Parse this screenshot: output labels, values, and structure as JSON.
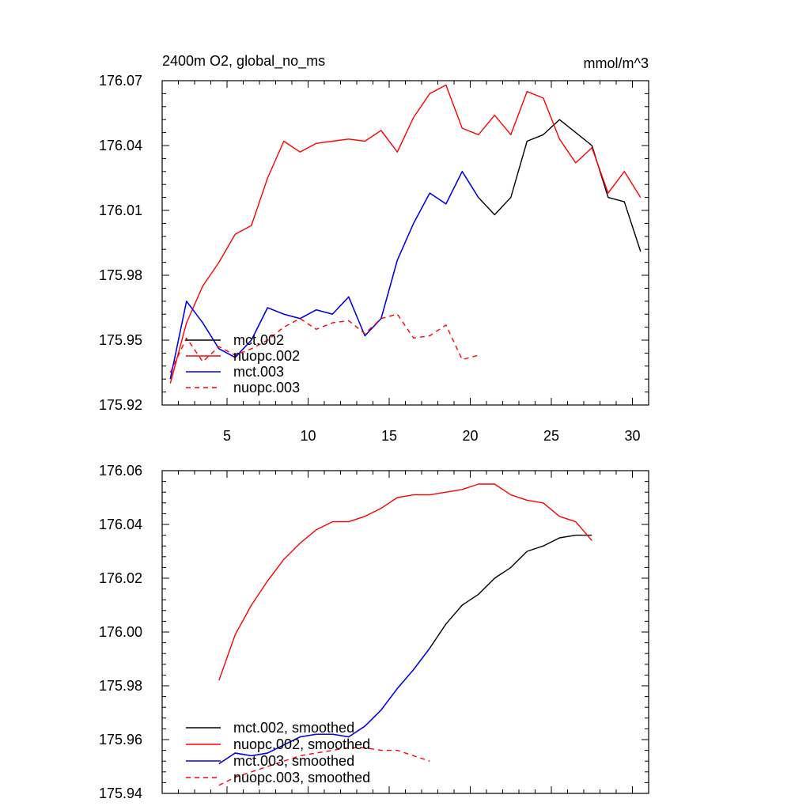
{
  "chart_data": [
    {
      "type": "line",
      "title": "2400m O2, global_no_ms",
      "units": "mmol/m^3",
      "xlim": [
        1,
        31
      ],
      "ylim": [
        175.92,
        176.07
      ],
      "xticks": [
        5,
        10,
        15,
        20,
        25,
        30
      ],
      "xtick_labels": [
        "5",
        "10",
        "15",
        "20",
        "25",
        "30"
      ],
      "yticks": [
        175.92,
        175.95,
        175.98,
        176.01,
        176.04,
        176.07
      ],
      "ytick_labels": [
        "175.92",
        "175.95",
        "175.98",
        "176.01",
        "176.04",
        "176.07"
      ],
      "legend_position": "bottom-left",
      "series": [
        {
          "name": "mct.002",
          "color": "#000000",
          "dash": "solid",
          "x": [
            1.5,
            2.5,
            3.5,
            4.5,
            5.5,
            6.5,
            7.5,
            8.5,
            9.5,
            10.5,
            11.5,
            12.5,
            13.5,
            14.5,
            15.5,
            16.5,
            17.5,
            18.5,
            19.5,
            20.5,
            21.5,
            22.5,
            23.5,
            24.5,
            25.5,
            26.5,
            27.5,
            28.5,
            29.5,
            30.5
          ],
          "values": [
            175.932,
            175.968,
            175.958,
            175.946,
            175.942,
            175.95,
            175.965,
            175.962,
            175.96,
            175.964,
            175.962,
            175.97,
            175.952,
            175.96,
            175.987,
            176.004,
            176.018,
            176.013,
            176.028,
            176.016,
            176.008,
            176.016,
            176.042,
            176.045,
            176.052,
            176.046,
            176.04,
            176.016,
            176.014,
            175.991
          ]
        },
        {
          "name": "nuopc.002",
          "color": "#ff0000",
          "dash": "solid",
          "x": [
            1.5,
            2.5,
            3.5,
            4.5,
            5.5,
            6.5,
            7.5,
            8.5,
            9.5,
            10.5,
            11.5,
            12.5,
            13.5,
            14.5,
            15.5,
            16.5,
            17.5,
            18.5,
            19.5,
            20.5,
            21.5,
            22.5,
            23.5,
            24.5,
            25.5,
            26.5,
            27.5,
            28.5,
            29.5,
            30.5
          ],
          "values": [
            175.93,
            175.958,
            175.975,
            175.986,
            175.999,
            176.003,
            176.025,
            176.042,
            176.037,
            176.041,
            176.042,
            176.043,
            176.042,
            176.047,
            176.037,
            176.053,
            176.064,
            176.068,
            176.048,
            176.045,
            176.054,
            176.045,
            176.065,
            176.062,
            176.043,
            176.032,
            176.039,
            176.018,
            176.028,
            176.016
          ]
        },
        {
          "name": "mct.003",
          "color": "#0000ff",
          "dash": "solid",
          "x": [
            1.5,
            2.5,
            3.5,
            4.5,
            5.5,
            6.5,
            7.5,
            8.5,
            9.5,
            10.5,
            11.5,
            12.5,
            13.5,
            14.5,
            15.5,
            16.5,
            17.5,
            18.5,
            19.5,
            20.5
          ],
          "values": [
            175.932,
            175.968,
            175.958,
            175.946,
            175.942,
            175.95,
            175.965,
            175.962,
            175.96,
            175.964,
            175.962,
            175.97,
            175.952,
            175.96,
            175.987,
            176.004,
            176.018,
            176.013,
            176.028,
            176.016
          ]
        },
        {
          "name": "nuopc.003",
          "color": "#ff0000",
          "dash": "dashed",
          "x": [
            1.5,
            2.5,
            3.5,
            4.5,
            5.5,
            6.5,
            7.5,
            8.5,
            9.5,
            10.5,
            11.5,
            12.5,
            13.5,
            14.5,
            15.5,
            16.5,
            17.5,
            18.5,
            19.5,
            20.5
          ],
          "values": [
            175.935,
            175.951,
            175.94,
            175.947,
            175.943,
            175.946,
            175.95,
            175.956,
            175.96,
            175.955,
            175.958,
            175.959,
            175.953,
            175.96,
            175.962,
            175.951,
            175.952,
            175.957,
            175.941,
            175.943
          ]
        }
      ]
    },
    {
      "type": "line",
      "xlim": [
        1,
        31
      ],
      "ylim": [
        175.94,
        176.06
      ],
      "xticks": [
        5,
        10,
        15,
        20,
        25,
        30
      ],
      "yticks": [
        175.94,
        175.96,
        175.98,
        176.0,
        176.02,
        176.04,
        176.06
      ],
      "ytick_labels": [
        "175.94",
        "175.96",
        "175.98",
        "176.00",
        "176.02",
        "176.04",
        "176.06"
      ],
      "legend_position": "bottom-left",
      "series": [
        {
          "name": "mct.002, smoothed",
          "color": "#000000",
          "dash": "solid",
          "x": [
            4.5,
            5.5,
            6.5,
            7.5,
            8.5,
            9.5,
            10.5,
            11.5,
            12.5,
            13.5,
            14.5,
            15.5,
            16.5,
            17.5,
            18.5,
            19.5,
            20.5,
            21.5,
            22.5,
            23.5,
            24.5,
            25.5,
            26.5,
            27.5
          ],
          "values": [
            175.951,
            175.955,
            175.954,
            175.955,
            175.958,
            175.961,
            175.962,
            175.962,
            175.961,
            175.965,
            175.971,
            175.979,
            175.986,
            175.994,
            176.003,
            176.01,
            176.014,
            176.02,
            176.024,
            176.03,
            176.032,
            176.035,
            176.036,
            176.036
          ]
        },
        {
          "name": "nuopc.002, smoothed",
          "color": "#ff0000",
          "dash": "solid",
          "x": [
            4.5,
            5.5,
            6.5,
            7.5,
            8.5,
            9.5,
            10.5,
            11.5,
            12.5,
            13.5,
            14.5,
            15.5,
            16.5,
            17.5,
            18.5,
            19.5,
            20.5,
            21.5,
            22.5,
            23.5,
            24.5,
            25.5,
            26.5,
            27.5
          ],
          "values": [
            175.982,
            175.999,
            176.01,
            176.019,
            176.027,
            176.033,
            176.038,
            176.041,
            176.041,
            176.043,
            176.046,
            176.05,
            176.051,
            176.051,
            176.052,
            176.053,
            176.055,
            176.055,
            176.051,
            176.049,
            176.048,
            176.043,
            176.041,
            176.034
          ]
        },
        {
          "name": "mct.003, smoothed",
          "color": "#0000ff",
          "dash": "solid",
          "x": [
            4.5,
            5.5,
            6.5,
            7.5,
            8.5,
            9.5,
            10.5,
            11.5,
            12.5,
            13.5,
            14.5,
            15.5,
            16.5,
            17.5
          ],
          "values": [
            175.951,
            175.955,
            175.954,
            175.955,
            175.958,
            175.961,
            175.962,
            175.962,
            175.961,
            175.965,
            175.971,
            175.979,
            175.986,
            175.994
          ]
        },
        {
          "name": "nuopc.003, smoothed",
          "color": "#ff0000",
          "dash": "dashed",
          "x": [
            4.5,
            5.5,
            6.5,
            7.5,
            8.5,
            9.5,
            10.5,
            11.5,
            12.5,
            13.5,
            14.5,
            15.5,
            16.5,
            17.5
          ],
          "values": [
            175.943,
            175.946,
            175.948,
            175.95,
            175.952,
            175.954,
            175.955,
            175.956,
            175.957,
            175.957,
            175.956,
            175.956,
            175.954,
            175.952
          ]
        }
      ]
    }
  ]
}
